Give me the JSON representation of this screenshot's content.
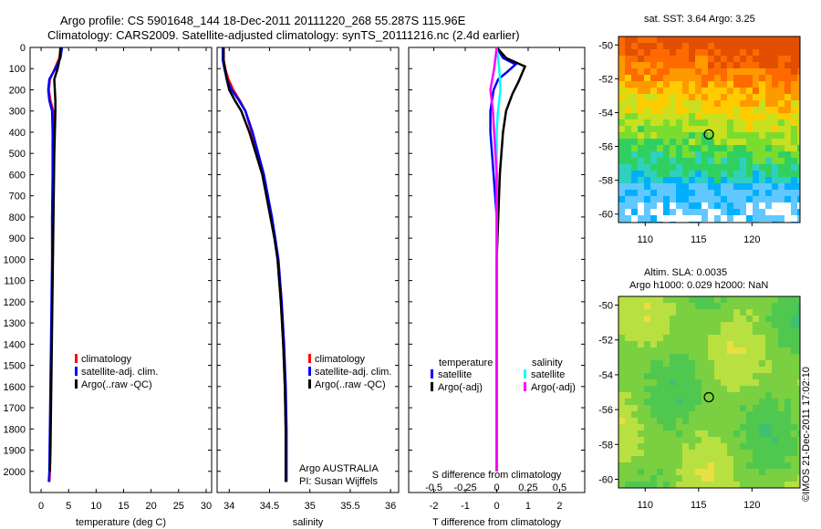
{
  "header": {
    "line1": "Argo profile: CS 5901648_144 18-Dec-2011 20111220_268 55.287S 115.96E",
    "line2": "Climatology: CARS2009. Satellite-adjusted climatology: synTS_20111216.nc (2.4d earlier)"
  },
  "sst_panel": {
    "title": "sat. SST: 3.64 Argo: 3.25"
  },
  "sla_panel": {
    "title1": "Altim. SLA: 0.0035",
    "title2": "Argo h1000: 0.029 h2000: NaN"
  },
  "credit": "©IMOS 21-Dec-2011 17:02:10",
  "annotations": {
    "argo_country": "Argo AUSTRALIA",
    "pi": "PI: Susan Wijffels"
  },
  "colors": {
    "climatology": "#ff0000",
    "satellite": "#0000ff",
    "argo": "#000000",
    "sal_satellite": "#00ffff",
    "sal_argo": "#ff00ff"
  },
  "chart_data": [
    {
      "type": "line",
      "xlabel": "temperature (deg C)",
      "ylabel": "",
      "xlim": [
        -2,
        31
      ],
      "ylim": [
        2100,
        0
      ],
      "x_ticks": [
        0,
        5,
        10,
        15,
        20,
        25,
        30
      ],
      "y_ticks": [
        0,
        100,
        200,
        300,
        400,
        500,
        600,
        700,
        800,
        900,
        1000,
        1100,
        1200,
        1300,
        1400,
        1500,
        1600,
        1700,
        1800,
        1900,
        2000
      ],
      "legend": [
        "climatology",
        "satellite-adj. clim.",
        "Argo(..raw -QC)"
      ],
      "series": [
        {
          "name": "climatology",
          "color": "#ff0000",
          "points": [
            [
              3.6,
              0
            ],
            [
              3.3,
              50
            ],
            [
              2.5,
              100
            ],
            [
              1.6,
              150
            ],
            [
              1.4,
              200
            ],
            [
              1.7,
              250
            ],
            [
              2.2,
              300
            ],
            [
              2.3,
              400
            ],
            [
              2.3,
              600
            ],
            [
              2.2,
              800
            ],
            [
              2.1,
              1000
            ],
            [
              2.0,
              1200
            ],
            [
              1.9,
              1400
            ],
            [
              1.8,
              1600
            ],
            [
              1.7,
              1800
            ],
            [
              1.6,
              2000
            ],
            [
              1.5,
              2050
            ]
          ]
        },
        {
          "name": "satellite-adj. clim.",
          "color": "#0000ff",
          "points": [
            [
              3.8,
              0
            ],
            [
              3.5,
              50
            ],
            [
              2.6,
              100
            ],
            [
              1.5,
              150
            ],
            [
              1.3,
              200
            ],
            [
              1.5,
              250
            ],
            [
              2.0,
              300
            ],
            [
              2.1,
              400
            ],
            [
              2.1,
              600
            ],
            [
              2.0,
              800
            ],
            [
              2.0,
              1000
            ],
            [
              1.9,
              1200
            ],
            [
              1.8,
              1400
            ],
            [
              1.7,
              1600
            ],
            [
              1.6,
              1800
            ],
            [
              1.5,
              2000
            ],
            [
              1.4,
              2050
            ]
          ]
        },
        {
          "name": "Argo(..raw -QC)",
          "color": "#000000",
          "points": [
            [
              3.5,
              0
            ],
            [
              3.4,
              50
            ],
            [
              3.0,
              100
            ],
            [
              2.4,
              150
            ],
            [
              2.5,
              200
            ],
            [
              2.6,
              250
            ],
            [
              2.6,
              300
            ],
            [
              2.5,
              400
            ],
            [
              2.4,
              500
            ],
            [
              2.3,
              700
            ],
            [
              2.2,
              900
            ],
            [
              2.1,
              1100
            ],
            [
              2.0,
              1300
            ],
            [
              1.9,
              1500
            ],
            [
              1.8,
              1700
            ],
            [
              1.7,
              1900
            ],
            [
              1.6,
              2000
            ]
          ]
        }
      ]
    },
    {
      "type": "line",
      "xlabel": "salinity",
      "ylabel": "",
      "xlim": [
        33.85,
        36.1
      ],
      "ylim": [
        2100,
        0
      ],
      "x_ticks": [
        34,
        34.5,
        35,
        35.5,
        36
      ],
      "legend": [
        "climatology",
        "satellite-adj. clim.",
        "Argo(..raw -QC)"
      ],
      "series": [
        {
          "name": "climatology",
          "color": "#ff0000",
          "points": [
            [
              33.93,
              0
            ],
            [
              33.93,
              60
            ],
            [
              33.95,
              100
            ],
            [
              33.99,
              150
            ],
            [
              34.05,
              200
            ],
            [
              34.13,
              250
            ],
            [
              34.2,
              300
            ],
            [
              34.28,
              400
            ],
            [
              34.35,
              500
            ],
            [
              34.42,
              600
            ],
            [
              34.47,
              700
            ],
            [
              34.52,
              800
            ],
            [
              34.57,
              900
            ],
            [
              34.6,
              1000
            ],
            [
              34.64,
              1200
            ],
            [
              34.67,
              1400
            ],
            [
              34.69,
              1600
            ],
            [
              34.7,
              1800
            ],
            [
              34.7,
              2050
            ]
          ]
        },
        {
          "name": "satellite-adj. clim.",
          "color": "#0000ff",
          "points": [
            [
              33.92,
              0
            ],
            [
              33.92,
              60
            ],
            [
              33.94,
              100
            ],
            [
              33.97,
              150
            ],
            [
              34.03,
              200
            ],
            [
              34.12,
              250
            ],
            [
              34.2,
              300
            ],
            [
              34.29,
              400
            ],
            [
              34.36,
              500
            ],
            [
              34.43,
              600
            ],
            [
              34.48,
              700
            ],
            [
              34.53,
              800
            ],
            [
              34.57,
              900
            ],
            [
              34.61,
              1000
            ],
            [
              34.65,
              1200
            ],
            [
              34.68,
              1400
            ],
            [
              34.7,
              1600
            ],
            [
              34.71,
              1800
            ],
            [
              34.71,
              2050
            ]
          ]
        },
        {
          "name": "Argo(..raw -QC)",
          "color": "#000000",
          "points": [
            [
              33.93,
              0
            ],
            [
              33.93,
              60
            ],
            [
              33.95,
              100
            ],
            [
              33.97,
              150
            ],
            [
              34.0,
              200
            ],
            [
              34.07,
              250
            ],
            [
              34.15,
              300
            ],
            [
              34.25,
              400
            ],
            [
              34.33,
              500
            ],
            [
              34.41,
              600
            ],
            [
              34.46,
              700
            ],
            [
              34.51,
              800
            ],
            [
              34.56,
              900
            ],
            [
              34.6,
              1000
            ],
            [
              34.64,
              1200
            ],
            [
              34.67,
              1400
            ],
            [
              34.69,
              1600
            ],
            [
              34.7,
              1800
            ],
            [
              34.7,
              2050
            ]
          ]
        }
      ]
    },
    {
      "type": "line",
      "xlabel": "T difference from climatology",
      "x2label": "S difference from climatology",
      "ylabel": "",
      "xlim": [
        -2.8,
        2.8
      ],
      "ylim": [
        2100,
        0
      ],
      "x_ticks": [
        -2,
        -1,
        0,
        1,
        2
      ],
      "x2_ticks": [
        -0.5,
        -0.25,
        0,
        0.25,
        0.5
      ],
      "x2lim": [
        -0.7,
        0.7
      ],
      "legend_groups": [
        "temperature",
        "salinity"
      ],
      "legend": [
        "satellite",
        "Argo(-adj)",
        "satellite",
        "Argo(-adj)"
      ],
      "series": [
        {
          "name": "satellite",
          "group": "temperature",
          "color": "#0000ff",
          "axis": "T",
          "points": [
            [
              0.0,
              0
            ],
            [
              0.2,
              50
            ],
            [
              0.6,
              80
            ],
            [
              0.3,
              120
            ],
            [
              0.05,
              150
            ],
            [
              -0.1,
              200
            ],
            [
              -0.2,
              300
            ],
            [
              -0.2,
              400
            ],
            [
              -0.1,
              600
            ],
            [
              0.0,
              800
            ],
            [
              0.0,
              1000
            ],
            [
              0.0,
              1500
            ],
            [
              0.0,
              2000
            ]
          ]
        },
        {
          "name": "Argo(-adj)",
          "group": "temperature",
          "color": "#000000",
          "axis": "T",
          "points": [
            [
              0.0,
              0
            ],
            [
              0.3,
              50
            ],
            [
              0.9,
              90
            ],
            [
              0.7,
              160
            ],
            [
              0.5,
              220
            ],
            [
              0.3,
              300
            ],
            [
              0.2,
              400
            ],
            [
              0.1,
              600
            ],
            [
              0.05,
              800
            ],
            [
              0.0,
              1000
            ],
            [
              0.0,
              1500
            ],
            [
              0.0,
              2000
            ]
          ]
        },
        {
          "name": "satellite",
          "group": "salinity",
          "color": "#00ffff",
          "axis": "S",
          "points": [
            [
              0.0,
              0
            ],
            [
              0.02,
              100
            ],
            [
              0.03,
              200
            ],
            [
              0.01,
              300
            ],
            [
              0.0,
              400
            ],
            [
              0.0,
              600
            ],
            [
              0.0,
              1000
            ],
            [
              0.0,
              2000
            ]
          ]
        },
        {
          "name": "Argo(-adj)",
          "group": "salinity",
          "color": "#ff00ff",
          "axis": "S",
          "points": [
            [
              0.0,
              0
            ],
            [
              -0.02,
              100
            ],
            [
              -0.05,
              200
            ],
            [
              -0.03,
              300
            ],
            [
              -0.02,
              400
            ],
            [
              0.0,
              600
            ],
            [
              0.0,
              1000
            ],
            [
              0.0,
              2000
            ]
          ]
        }
      ]
    },
    {
      "type": "heatmap",
      "title": "sat. SST: 3.64 Argo: 3.25",
      "xlim": [
        107.5,
        124.5
      ],
      "ylim": [
        -60.5,
        -49.5
      ],
      "x_ticks": [
        110,
        115,
        120
      ],
      "y_ticks": [
        -50,
        -52,
        -54,
        -56,
        -58,
        -60
      ],
      "marker": {
        "lon": 115.96,
        "lat": -55.287
      }
    },
    {
      "type": "heatmap",
      "title": "Altim. SLA: 0.0035",
      "subtitle": "Argo h1000: 0.029 h2000: NaN",
      "xlim": [
        107.5,
        124.5
      ],
      "ylim": [
        -60.5,
        -49.5
      ],
      "x_ticks": [
        110,
        115,
        120
      ],
      "y_ticks": [
        -50,
        -52,
        -54,
        -56,
        -58,
        -60
      ],
      "marker": {
        "lon": 115.96,
        "lat": -55.287
      }
    }
  ]
}
